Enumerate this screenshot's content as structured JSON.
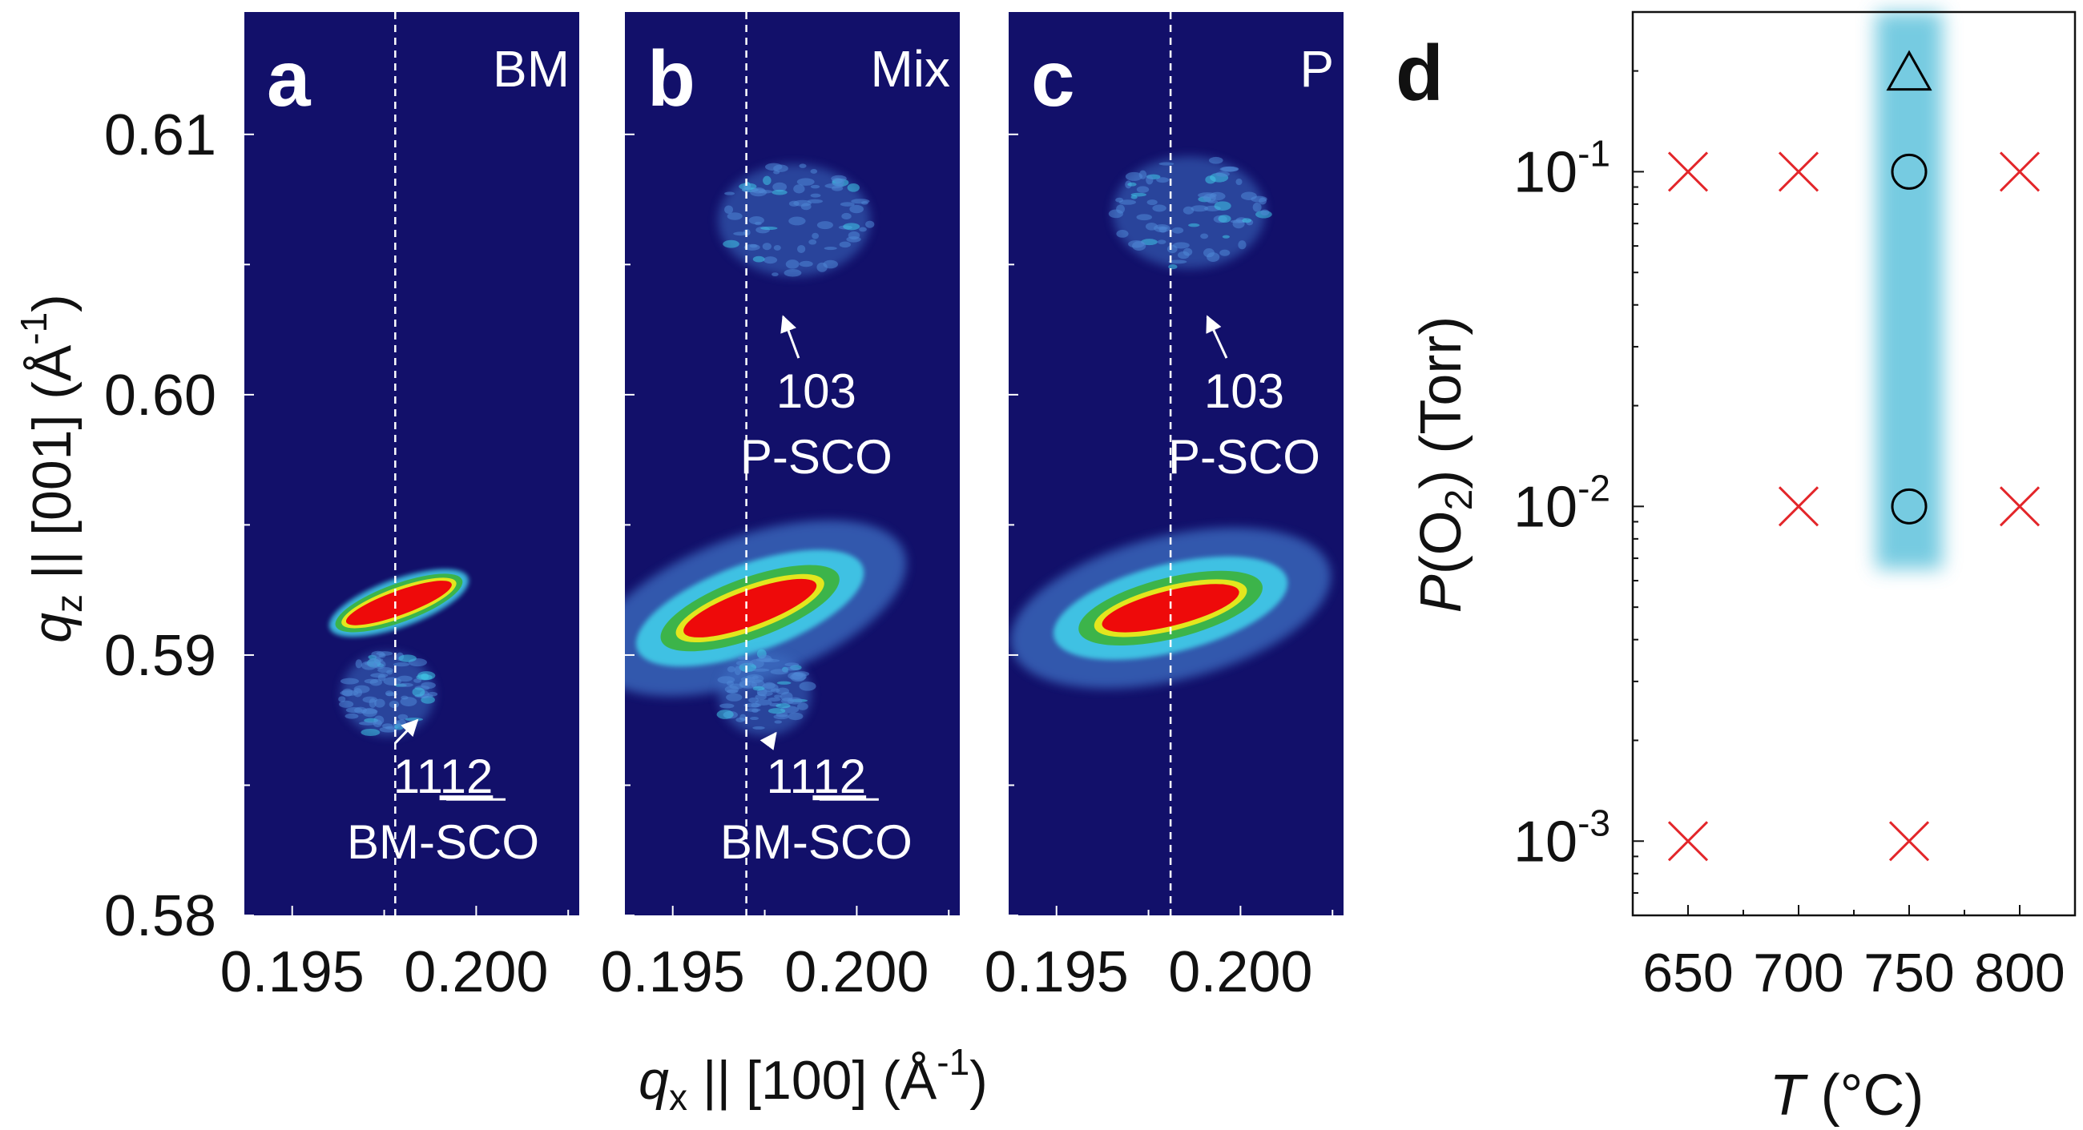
{
  "colors": {
    "map_background": "#12106a",
    "diffuse_blue": "#3d6fc4",
    "cyan": "#3fc7e6",
    "green": "#3cb44a",
    "yellow": "#e3e61e",
    "peak_red": "#ee0a0a",
    "marker_red": "#e3262a",
    "band_fill": "#5fc2dc",
    "dashed_line": "#ffffff"
  },
  "chart_data": [
    {
      "type": "heatmap",
      "panel": "a",
      "label": "BM",
      "ylabel": "qz || [001] (Å-1)",
      "xlabel": "qx || [100] (Å-1)",
      "xlim": [
        0.1937,
        0.2028
      ],
      "ylim": [
        0.58,
        0.6147
      ],
      "xticks": [
        "0.195",
        "0.200"
      ],
      "yticks": [
        "0.58",
        "0.59",
        "0.60",
        "0.61"
      ],
      "reference_qx": 0.1978,
      "peaks": [
        {
          "label": "",
          "qx": 0.1979,
          "qz": 0.592,
          "shape": "sharp-ellipse",
          "angle": -20
        },
        {
          "label": "",
          "qx": 0.1976,
          "qz": 0.5885,
          "shape": "diffuse-blob"
        }
      ],
      "annotations": [
        {
          "text_parts": [
            "11",
            "12"
          ],
          "underline_part": 1,
          "phase": "BM-SCO",
          "qx": 0.1991,
          "qz": 0.5847,
          "arrow_to": [
            0.1984,
            0.5875
          ]
        }
      ]
    },
    {
      "type": "heatmap",
      "panel": "b",
      "label": "Mix",
      "xlim": [
        0.1937,
        0.2028
      ],
      "ylim": [
        0.58,
        0.6147
      ],
      "xticks": [
        "0.195",
        "0.200"
      ],
      "yticks": [
        "0.58",
        "0.59",
        "0.60",
        "0.61"
      ],
      "reference_qx": 0.197,
      "peaks": [
        {
          "label": "",
          "qx": 0.1971,
          "qz": 0.5918,
          "shape": "broad-ellipse",
          "angle": -20
        },
        {
          "label": "",
          "qx": 0.1983,
          "qz": 0.6067,
          "shape": "diffuse-blob"
        },
        {
          "label": "",
          "qx": 0.1975,
          "qz": 0.5885,
          "shape": "diffuse-blob"
        }
      ],
      "annotations": [
        {
          "text": "103",
          "phase": "P-SCO",
          "qx": 0.1989,
          "qz": 0.5995,
          "arrow_to": [
            0.198,
            0.603
          ]
        },
        {
          "text_parts": [
            "11",
            "12"
          ],
          "underline_part": 1,
          "phase": "BM-SCO",
          "qx": 0.1989,
          "qz": 0.5847,
          "arrow_to": [
            0.1978,
            0.587
          ]
        }
      ]
    },
    {
      "type": "heatmap",
      "panel": "c",
      "label": "P",
      "xlim": [
        0.1937,
        0.2028
      ],
      "ylim": [
        0.58,
        0.6147
      ],
      "xticks": [
        "0.195",
        "0.200"
      ],
      "yticks": [
        "0.58",
        "0.59",
        "0.60",
        "0.61"
      ],
      "reference_qx": 0.1981,
      "peaks": [
        {
          "label": "",
          "qx": 0.1981,
          "qz": 0.5918,
          "shape": "broad-ellipse",
          "angle": -14
        },
        {
          "label": "",
          "qx": 0.1986,
          "qz": 0.607,
          "shape": "diffuse-blob"
        }
      ],
      "annotations": [
        {
          "text": "103",
          "phase": "P-SCO",
          "qx": 0.2001,
          "qz": 0.5995,
          "arrow_to": [
            0.1991,
            0.603
          ]
        }
      ]
    },
    {
      "type": "scatter",
      "panel": "d",
      "xlabel": "T (°C)",
      "ylabel": "P(O2) (Torr)",
      "xlim": [
        625,
        825
      ],
      "ylim": [
        0.0006,
        0.3
      ],
      "yscale": "log",
      "xticks": [
        650,
        700,
        750,
        800
      ],
      "yticks": [
        {
          "base": "10",
          "exp": "-1",
          "value": 0.1
        },
        {
          "base": "10",
          "exp": "-2",
          "value": 0.01
        },
        {
          "base": "10",
          "exp": "-3",
          "value": 0.001
        }
      ],
      "highlight_band": {
        "x": [
          735,
          765
        ],
        "y": [
          0.0065,
          0.3
        ]
      },
      "series": [
        {
          "marker": "x",
          "color": "#e3262a",
          "points": [
            [
              650,
              0.1
            ],
            [
              700,
              0.1
            ],
            [
              800,
              0.1
            ],
            [
              700,
              0.01
            ],
            [
              800,
              0.01
            ],
            [
              650,
              0.001
            ],
            [
              750,
              0.001
            ]
          ]
        },
        {
          "marker": "circle",
          "color": "#000000",
          "points": [
            [
              750,
              0.1
            ],
            [
              750,
              0.01
            ]
          ]
        },
        {
          "marker": "triangle",
          "color": "#000000",
          "points": [
            [
              750,
              0.2
            ]
          ]
        }
      ]
    }
  ]
}
